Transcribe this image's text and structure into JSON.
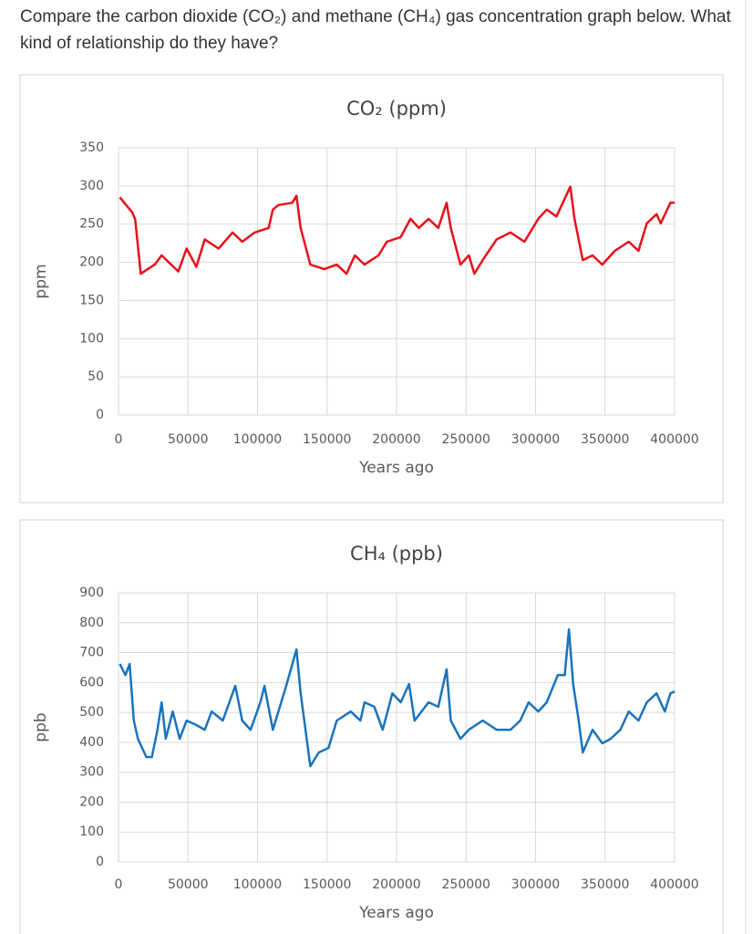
{
  "question": "Compare the carbon dioxide (CO₂) and methane (CH₄) gas concentration graph below. What kind of relationship do they have?",
  "chart_data": [
    {
      "type": "line",
      "title": "CO₂ (ppm)",
      "x_label": "Years ago",
      "y_label": "ppm",
      "color": "#e8101a",
      "grid": true,
      "xlim": [
        0,
        400000
      ],
      "xticks": [
        0,
        50000,
        100000,
        150000,
        200000,
        250000,
        300000,
        350000,
        400000
      ],
      "ylim": [
        0,
        350
      ],
      "yticks": [
        0,
        50,
        100,
        150,
        200,
        250,
        300,
        350
      ],
      "x": [
        1000,
        10000,
        12000,
        16000,
        26000,
        31000,
        43000,
        49000,
        56000,
        62000,
        72000,
        82000,
        89000,
        98000,
        108000,
        111000,
        115000,
        125000,
        128000,
        131000,
        138000,
        148000,
        157000,
        164000,
        170000,
        177000,
        187000,
        193000,
        203000,
        210000,
        216000,
        223000,
        230000,
        236000,
        239000,
        246000,
        252000,
        256000,
        262000,
        272000,
        282000,
        292000,
        302000,
        308000,
        315000,
        325000,
        328000,
        334000,
        341000,
        348000,
        357000,
        367000,
        374000,
        380000,
        387000,
        390000,
        397000,
        400000
      ],
      "values": [
        285,
        265,
        256,
        185,
        197,
        209,
        188,
        218,
        194,
        230,
        218,
        239,
        227,
        239,
        245,
        269,
        275,
        278,
        287,
        245,
        197,
        191,
        197,
        185,
        209,
        197,
        209,
        227,
        233,
        257,
        245,
        257,
        245,
        278,
        245,
        197,
        209,
        185,
        203,
        230,
        239,
        227,
        257,
        269,
        260,
        299,
        257,
        203,
        209,
        197,
        215,
        227,
        215,
        251,
        263,
        251,
        278,
        278
      ]
    },
    {
      "type": "line",
      "title": "CH₄ (ppb)",
      "x_label": "Years ago",
      "y_label": "ppb",
      "color": "#1a73bd",
      "grid": true,
      "xlim": [
        0,
        400000
      ],
      "xticks": [
        0,
        50000,
        100000,
        150000,
        200000,
        250000,
        300000,
        350000,
        400000
      ],
      "ylim": [
        0,
        900
      ],
      "yticks": [
        0,
        100,
        200,
        300,
        400,
        500,
        600,
        700,
        800,
        900
      ],
      "x": [
        1000,
        5000,
        8000,
        11000,
        14000,
        20000,
        24000,
        28000,
        31000,
        34000,
        39000,
        44000,
        49000,
        56000,
        62000,
        67000,
        75000,
        84000,
        89000,
        95000,
        102000,
        105000,
        111000,
        115000,
        121000,
        128000,
        131000,
        138000,
        144000,
        151000,
        157000,
        167000,
        174000,
        177000,
        184000,
        190000,
        197000,
        203000,
        209000,
        213000,
        223000,
        230000,
        236000,
        239000,
        246000,
        252000,
        262000,
        272000,
        282000,
        289000,
        295000,
        302000,
        308000,
        316000,
        321000,
        324000,
        327000,
        331000,
        334000,
        341000,
        348000,
        354000,
        361000,
        367000,
        374000,
        380000,
        387000,
        393000,
        397000,
        400000
      ],
      "values": [
        662,
        625,
        662,
        473,
        412,
        351,
        351,
        442,
        534,
        412,
        503,
        412,
        473,
        458,
        442,
        503,
        473,
        589,
        473,
        442,
        534,
        589,
        442,
        503,
        595,
        711,
        564,
        320,
        366,
        381,
        473,
        503,
        473,
        534,
        519,
        442,
        564,
        534,
        595,
        473,
        534,
        519,
        644,
        473,
        412,
        442,
        473,
        442,
        442,
        473,
        534,
        503,
        534,
        625,
        625,
        778,
        595,
        473,
        366,
        442,
        397,
        412,
        442,
        503,
        473,
        534,
        564,
        503,
        564,
        570
      ]
    }
  ]
}
